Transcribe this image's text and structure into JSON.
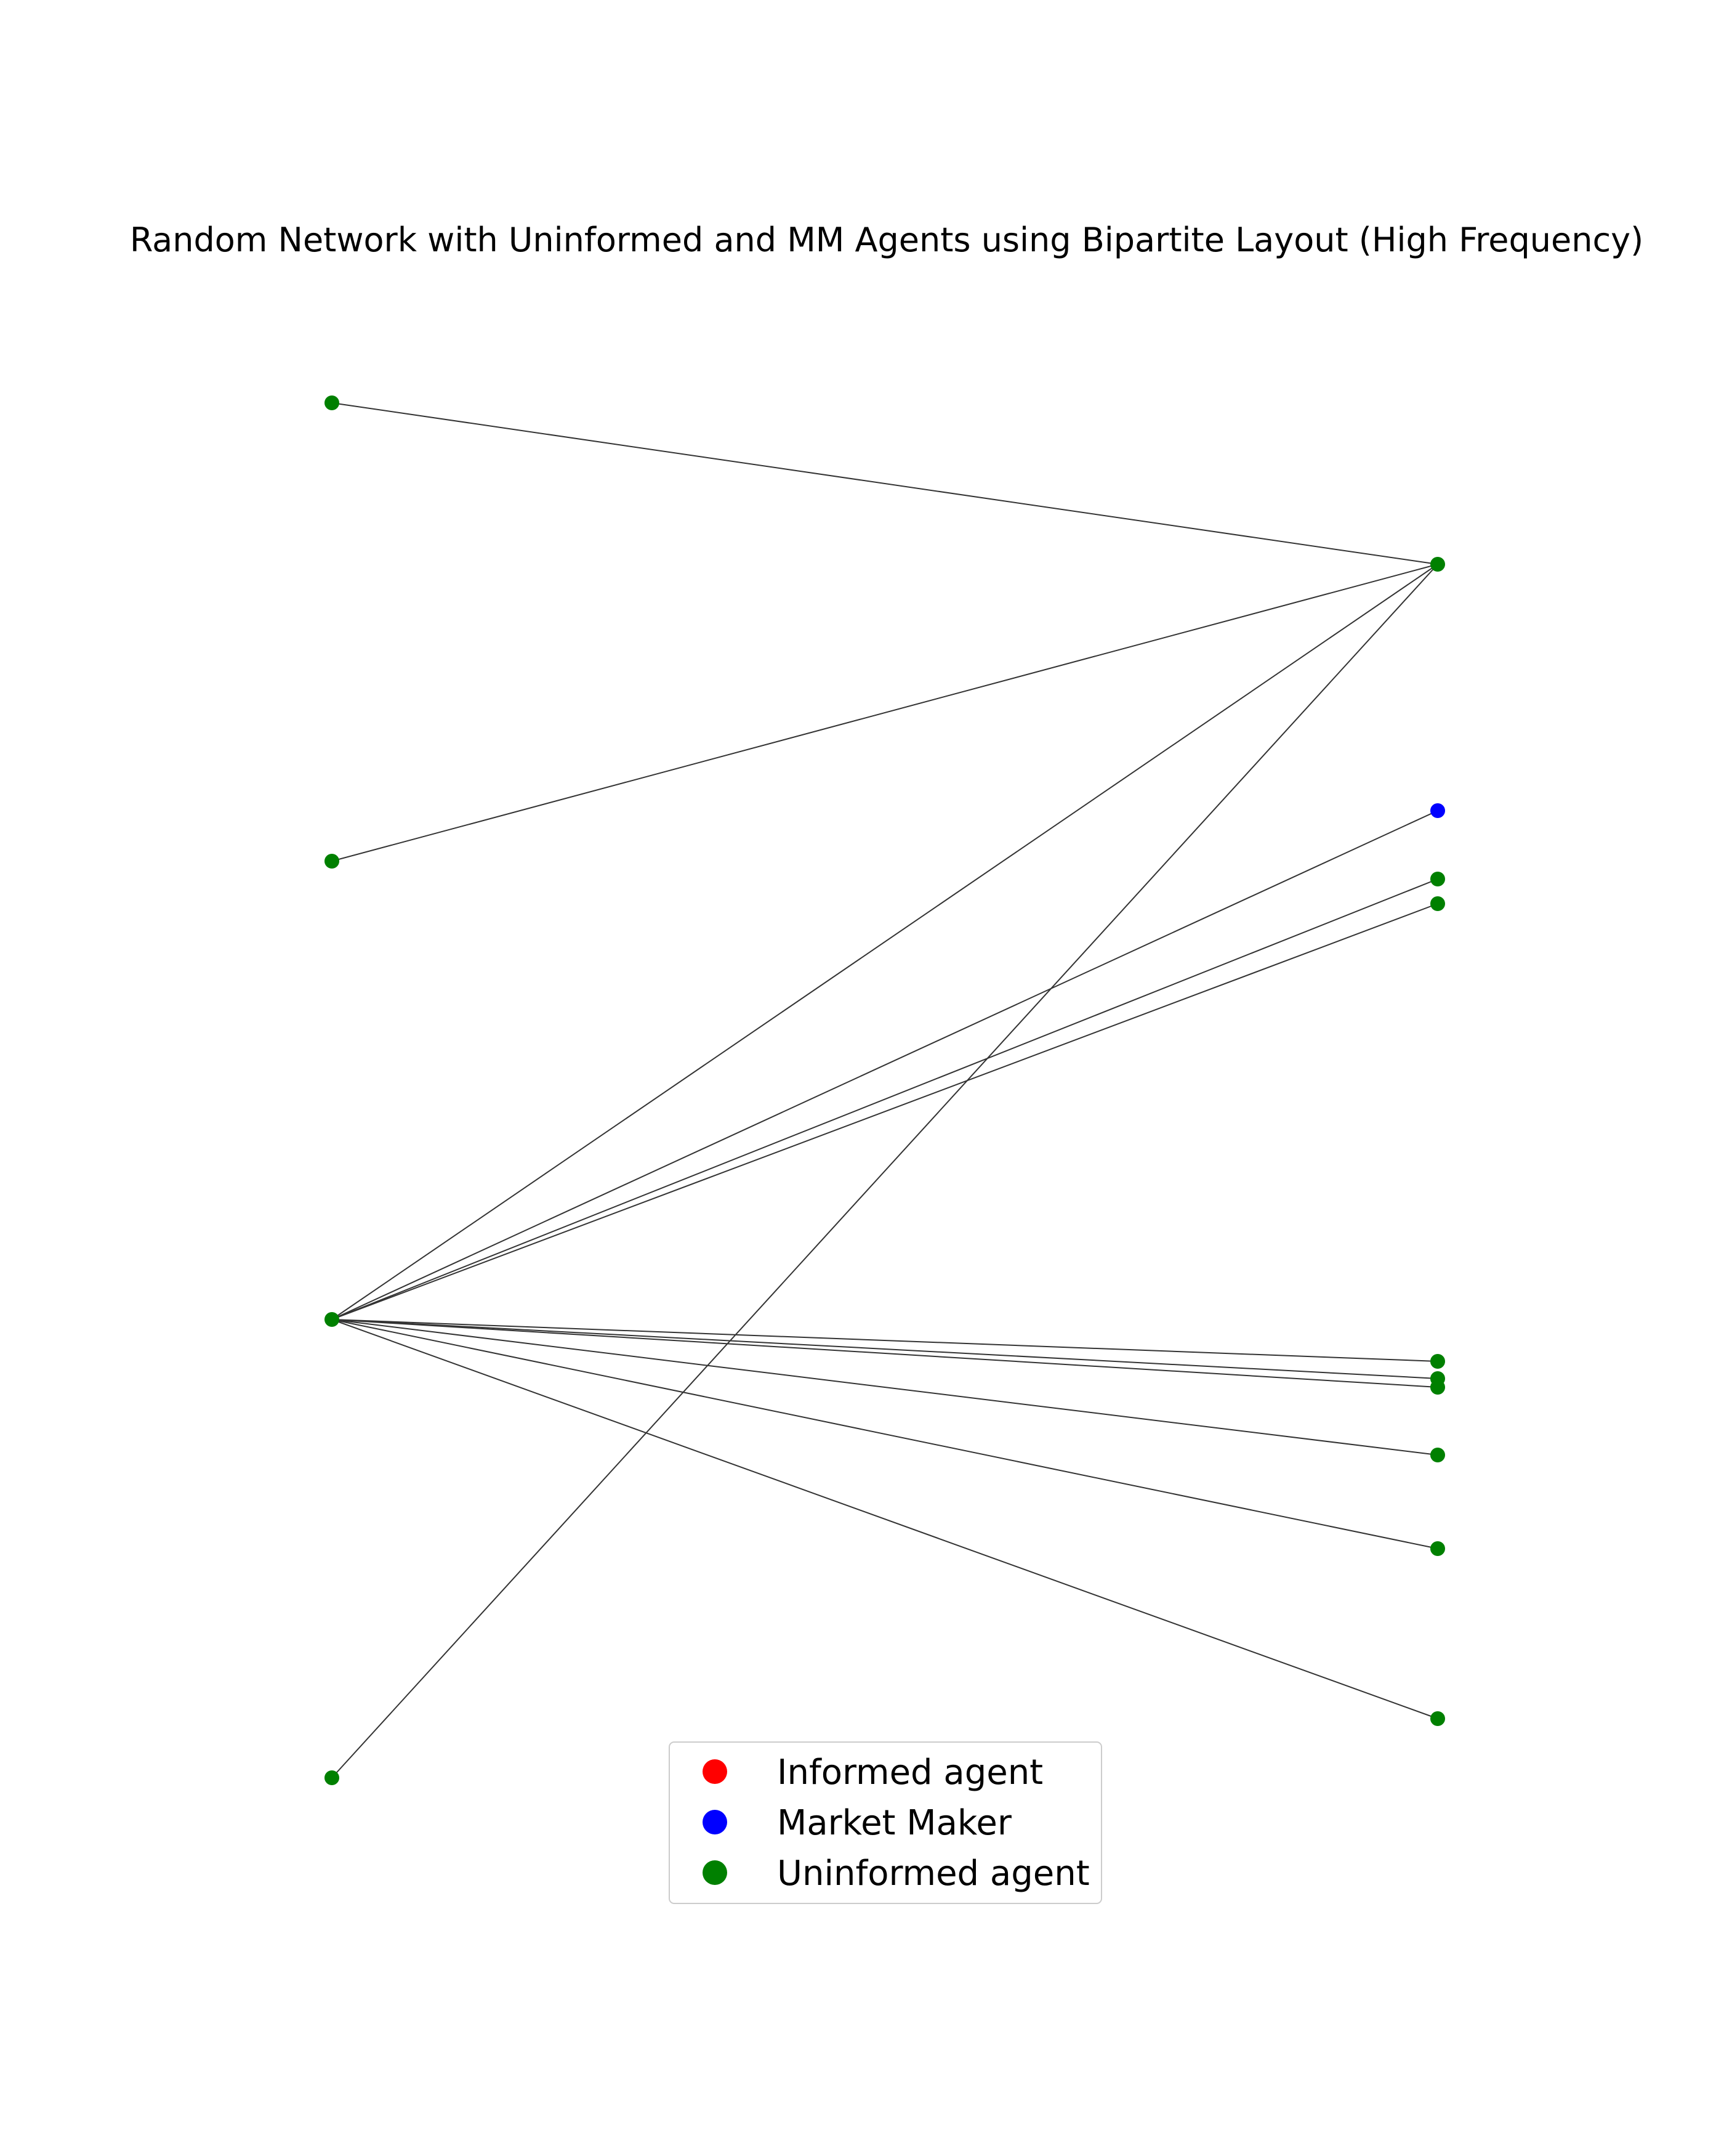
{
  "title": "Random Network with Uninformed and MM Agents using Bipartite Layout (High Frequency)",
  "colors": {
    "informed": "#ff0000",
    "market_maker": "#0000ff",
    "uninformed": "#008000",
    "edge": "#333333"
  },
  "legend": {
    "position": "lower-center",
    "items": [
      {
        "label": "Informed agent",
        "color": "#ff0000",
        "type": "informed"
      },
      {
        "label": "Market Maker",
        "color": "#0000ff",
        "type": "market_maker"
      },
      {
        "label": "Uninformed agent",
        "color": "#008000",
        "type": "uninformed"
      }
    ]
  },
  "graph": {
    "layout": "bipartite",
    "nodes": [
      {
        "id": "L1",
        "side": "left",
        "type": "uninformed"
      },
      {
        "id": "L2",
        "side": "left",
        "type": "uninformed"
      },
      {
        "id": "L3",
        "side": "left",
        "type": "uninformed"
      },
      {
        "id": "L4",
        "side": "left",
        "type": "uninformed"
      },
      {
        "id": "R1",
        "side": "right",
        "type": "uninformed"
      },
      {
        "id": "R2",
        "side": "right",
        "type": "market_maker"
      },
      {
        "id": "R3",
        "side": "right",
        "type": "uninformed"
      },
      {
        "id": "R4",
        "side": "right",
        "type": "uninformed"
      },
      {
        "id": "R5",
        "side": "right",
        "type": "uninformed"
      },
      {
        "id": "R6",
        "side": "right",
        "type": "uninformed"
      },
      {
        "id": "R7",
        "side": "right",
        "type": "uninformed"
      },
      {
        "id": "R8",
        "side": "right",
        "type": "uninformed"
      },
      {
        "id": "R9",
        "side": "right",
        "type": "uninformed"
      },
      {
        "id": "R10",
        "side": "right",
        "type": "uninformed"
      }
    ],
    "edges": [
      [
        "L1",
        "R1"
      ],
      [
        "L2",
        "R1"
      ],
      [
        "L3",
        "R1"
      ],
      [
        "L4",
        "R1"
      ],
      [
        "L3",
        "R2"
      ],
      [
        "L3",
        "R3"
      ],
      [
        "L3",
        "R4"
      ],
      [
        "L3",
        "R5"
      ],
      [
        "L3",
        "R6"
      ],
      [
        "L3",
        "R7"
      ],
      [
        "L3",
        "R8"
      ],
      [
        "L3",
        "R9"
      ],
      [
        "L3",
        "R10"
      ]
    ]
  }
}
